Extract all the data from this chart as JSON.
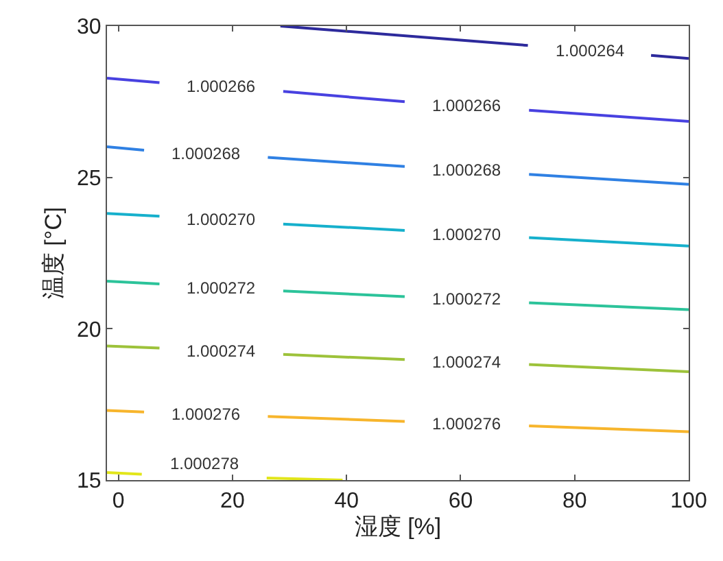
{
  "chart_data": {
    "type": "line",
    "xlabel": "湿度 [%]",
    "ylabel": "温度 [°C]",
    "xlim": [
      -2,
      100
    ],
    "ylim": [
      15,
      30
    ],
    "xticks": [
      0,
      20,
      40,
      60,
      80,
      100
    ],
    "yticks": [
      15,
      20,
      25,
      30
    ],
    "marker": "none",
    "line_style": "solid",
    "series": [
      {
        "color": "#2d2a9c",
        "x": [
          28.4,
          71.8,
          null,
          93.4,
          100
        ],
        "values": [
          30,
          29.36,
          null,
          29.03,
          28.93
        ]
      },
      {
        "color": "#4841e0",
        "x": [
          -2,
          7.2,
          null,
          28.9,
          50.2,
          null,
          72,
          100
        ],
        "values": [
          28.28,
          28.13,
          null,
          27.84,
          27.5,
          null,
          27.22,
          26.85
        ]
      },
      {
        "color": "#2f80e3",
        "x": [
          -2,
          4.5,
          null,
          26.2,
          50.2,
          null,
          72,
          100
        ],
        "values": [
          26.01,
          25.9,
          null,
          25.66,
          25.36,
          null,
          25.1,
          24.77
        ]
      },
      {
        "color": "#16b0cc",
        "x": [
          -2,
          7.2,
          null,
          28.9,
          50.2,
          null,
          72,
          100
        ],
        "values": [
          23.81,
          23.72,
          null,
          23.46,
          23.25,
          null,
          23.01,
          22.73
        ]
      },
      {
        "color": "#2cc39a",
        "x": [
          -2,
          7.2,
          null,
          28.9,
          50.2,
          null,
          72,
          100
        ],
        "values": [
          21.57,
          21.48,
          null,
          21.25,
          21.06,
          null,
          20.86,
          20.63
        ]
      },
      {
        "color": "#9dc23a",
        "x": [
          -2,
          7.2,
          null,
          28.9,
          50.2,
          null,
          72,
          100
        ],
        "values": [
          19.43,
          19.36,
          null,
          19.15,
          18.98,
          null,
          18.82,
          18.58
        ]
      },
      {
        "color": "#f7b52c",
        "x": [
          -2,
          4.5,
          null,
          26.2,
          50.2,
          null,
          72,
          100
        ],
        "values": [
          17.3,
          17.25,
          null,
          17.1,
          16.94,
          null,
          16.79,
          16.6
        ]
      },
      {
        "color": "#e2e61a",
        "x": [
          -2,
          4.1,
          null,
          26,
          39.3
        ],
        "values": [
          15.25,
          15.19,
          null,
          15.07,
          15.0
        ]
      }
    ],
    "annotations": [
      "1.000264",
      "1.000266",
      "1.000266",
      "1.000268",
      "1.000268",
      "1.000270",
      "1.000270",
      "1.000272",
      "1.000272",
      "1.000274",
      "1.000274",
      "1.000276",
      "1.000276",
      "1.000278"
    ]
  }
}
